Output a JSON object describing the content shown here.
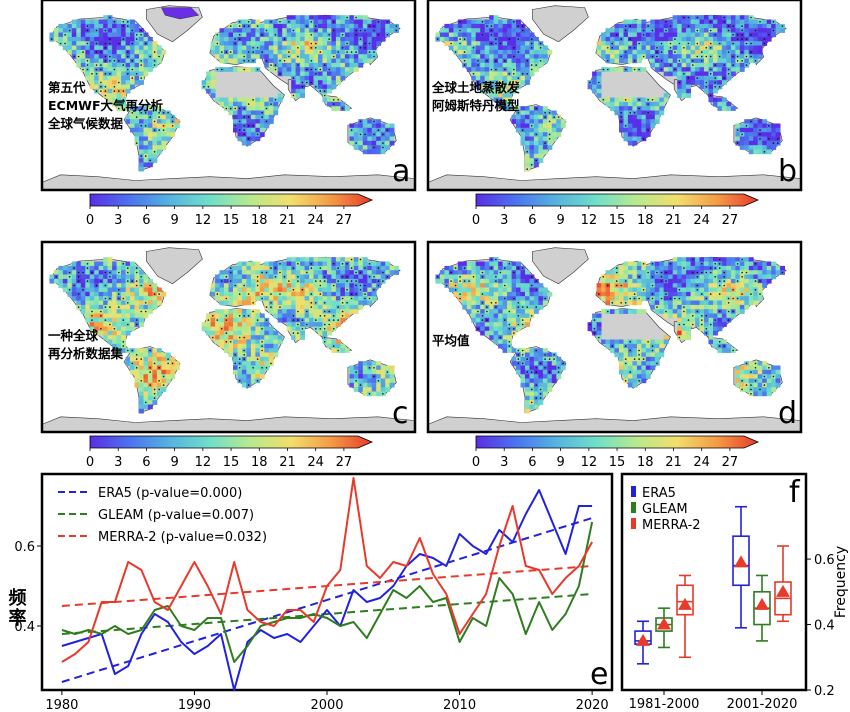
{
  "colors": {
    "ocean": "#ffffff",
    "no_data_land": "#d0d0d0",
    "era5": "#2222dd",
    "gleam": "#2e7d1e",
    "merra2": "#e8392b",
    "frame": "#000000"
  },
  "maps": [
    {
      "letter": "a",
      "label_lines": [
        "第五代",
        "ECMWF大气再分析",
        "全球气候数据"
      ],
      "bias": 0.0,
      "seed": 11
    },
    {
      "letter": "b",
      "label_lines": [
        "全球土地蒸散发",
        "阿姆斯特丹模型"
      ],
      "bias": -0.05,
      "seed": 23
    },
    {
      "letter": "c",
      "label_lines": [
        "一种全球",
        "再分析数据集"
      ],
      "bias": 0.12,
      "seed": 37
    },
    {
      "letter": "d",
      "label_lines": [
        "平均值"
      ],
      "bias": 0.04,
      "seed": 53
    }
  ],
  "colorbar": {
    "ticks": [
      "0",
      "3",
      "6",
      "9",
      "12",
      "15",
      "18",
      "21",
      "24",
      "27"
    ],
    "min": 0,
    "max": 28.5,
    "stops": [
      "#5a2ee6",
      "#4b74f0",
      "#56b4e0",
      "#70e0c8",
      "#b8ea8c",
      "#f2de6c",
      "#f39a45",
      "#e83a2a"
    ]
  },
  "chart_data": [
    {
      "panel": "e",
      "type": "line",
      "title": "",
      "ylabel": "频率",
      "xlabel": "",
      "xlim": [
        1978.5,
        2021.5
      ],
      "ylim": [
        0.24,
        0.78
      ],
      "xticks": [
        1980,
        1990,
        2000,
        2010,
        2020
      ],
      "yticks": [
        0.4,
        0.6
      ],
      "x": [
        1980,
        1981,
        1982,
        1983,
        1984,
        1985,
        1986,
        1987,
        1988,
        1989,
        1990,
        1991,
        1992,
        1993,
        1994,
        1995,
        1996,
        1997,
        1998,
        1999,
        2000,
        2001,
        2002,
        2003,
        2004,
        2005,
        2006,
        2007,
        2008,
        2009,
        2010,
        2011,
        2012,
        2013,
        2014,
        2015,
        2016,
        2017,
        2018,
        2019,
        2020
      ],
      "series": [
        {
          "name": "ERA5 (p-value=0.000)",
          "color_key": "era5",
          "values": [
            0.35,
            0.36,
            0.37,
            0.38,
            0.28,
            0.3,
            0.38,
            0.43,
            0.41,
            0.36,
            0.33,
            0.35,
            0.38,
            0.24,
            0.36,
            0.39,
            0.37,
            0.38,
            0.36,
            0.4,
            0.44,
            0.4,
            0.49,
            0.46,
            0.47,
            0.5,
            0.55,
            0.58,
            0.57,
            0.55,
            0.63,
            0.6,
            0.58,
            0.64,
            0.61,
            0.68,
            0.74,
            0.66,
            0.58,
            0.7,
            0.7
          ],
          "trend": [
            0.26,
            0.67
          ]
        },
        {
          "name": "GLEAM (p-value=0.007)",
          "color_key": "gleam",
          "values": [
            0.39,
            0.38,
            0.39,
            0.38,
            0.4,
            0.38,
            0.39,
            0.44,
            0.45,
            0.4,
            0.39,
            0.42,
            0.42,
            0.31,
            0.35,
            0.4,
            0.41,
            0.42,
            0.42,
            0.43,
            0.42,
            0.4,
            0.41,
            0.37,
            0.43,
            0.49,
            0.47,
            0.5,
            0.46,
            0.47,
            0.36,
            0.42,
            0.4,
            0.52,
            0.48,
            0.38,
            0.46,
            0.39,
            0.43,
            0.5,
            0.66
          ],
          "trend": [
            0.38,
            0.48
          ]
        },
        {
          "name": "MERRA-2 (p-value=0.032)",
          "color_key": "merra2",
          "values": [
            0.31,
            0.33,
            0.36,
            0.46,
            0.46,
            0.56,
            0.54,
            0.46,
            0.44,
            0.5,
            0.56,
            0.5,
            0.43,
            0.56,
            0.44,
            0.41,
            0.4,
            0.44,
            0.44,
            0.41,
            0.5,
            0.54,
            0.77,
            0.55,
            0.52,
            0.56,
            0.55,
            0.62,
            0.53,
            0.48,
            0.38,
            0.43,
            0.48,
            0.6,
            0.7,
            0.55,
            0.54,
            0.48,
            0.52,
            0.55,
            0.61
          ],
          "trend": [
            0.45,
            0.55
          ]
        }
      ]
    },
    {
      "panel": "f",
      "type": "box",
      "ylabel": "Frequency",
      "ylim": [
        0.2,
        0.86
      ],
      "yticks": [
        "0.2",
        "0.4",
        "0.6"
      ],
      "categories": [
        "1981-2000",
        "2001-2020"
      ],
      "legend": [
        "ERA5",
        "GLEAM",
        "MERRA-2"
      ],
      "boxes": [
        {
          "category": "1981-2000",
          "dataset": "ERA5",
          "color_key": "era5",
          "min": 0.28,
          "q1": 0.34,
          "median": 0.35,
          "q3": 0.38,
          "max": 0.41,
          "mean": 0.35
        },
        {
          "category": "1981-2000",
          "dataset": "GLEAM",
          "color_key": "gleam",
          "min": 0.33,
          "q1": 0.38,
          "median": 0.4,
          "q3": 0.42,
          "max": 0.45,
          "mean": 0.4
        },
        {
          "category": "1981-2000",
          "dataset": "MERRA-2",
          "color_key": "merra2",
          "min": 0.3,
          "q1": 0.43,
          "median": 0.47,
          "q3": 0.52,
          "max": 0.55,
          "mean": 0.46
        },
        {
          "category": "2001-2020",
          "dataset": "ERA5",
          "color_key": "era5",
          "min": 0.39,
          "q1": 0.52,
          "median": 0.58,
          "q3": 0.67,
          "max": 0.76,
          "mean": 0.59
        },
        {
          "category": "2001-2020",
          "dataset": "GLEAM",
          "color_key": "gleam",
          "min": 0.35,
          "q1": 0.4,
          "median": 0.45,
          "q3": 0.5,
          "max": 0.55,
          "mean": 0.46
        },
        {
          "category": "2001-2020",
          "dataset": "MERRA-2",
          "color_key": "merra2",
          "min": 0.41,
          "q1": 0.43,
          "median": 0.48,
          "q3": 0.53,
          "max": 0.64,
          "mean": 0.5
        }
      ]
    }
  ]
}
